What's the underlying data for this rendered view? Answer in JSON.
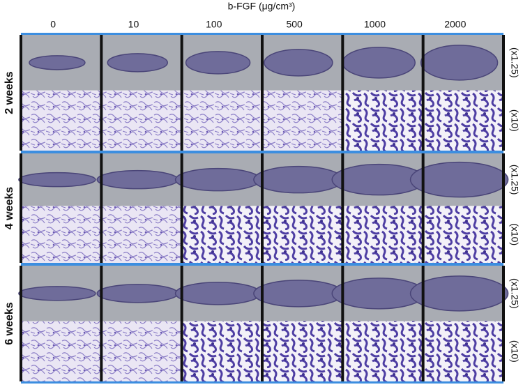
{
  "header": {
    "title": "b-FGF (μg/cm³)"
  },
  "columns": [
    "0",
    "10",
    "100",
    "500",
    "1000",
    "2000"
  ],
  "rows": [
    {
      "label": "2 weeks",
      "magnifications": [
        "(x1.25)",
        "(x10)"
      ]
    },
    {
      "label": "4 weeks",
      "magnifications": [
        "(x1.25)",
        "(x10)"
      ]
    },
    {
      "label": "6 weeks",
      "magnifications": [
        "(x1.25)",
        "(x10)"
      ]
    }
  ]
}
